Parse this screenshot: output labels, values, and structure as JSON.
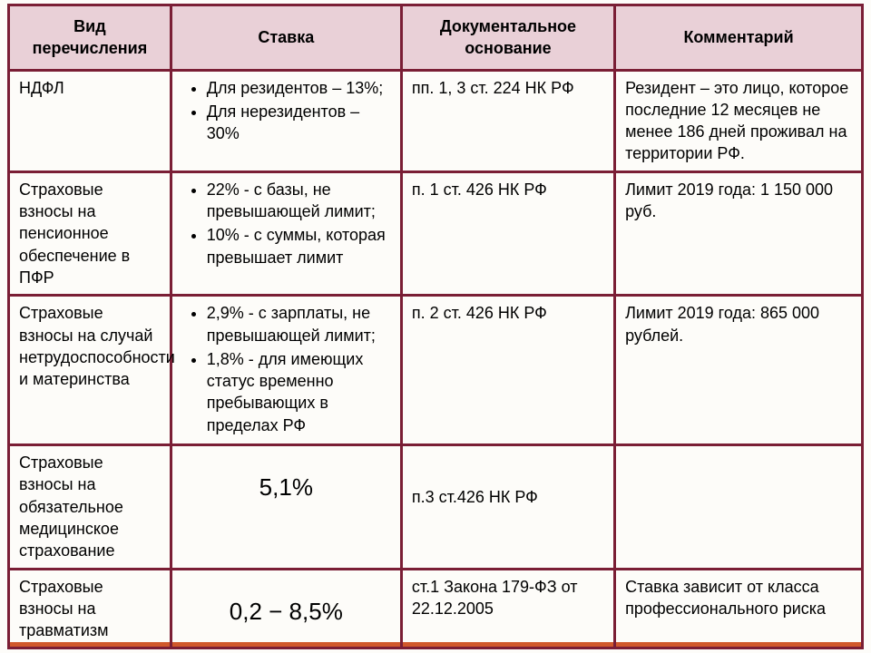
{
  "border_color": "#7a1e35",
  "header_bg": "#e9d0d7",
  "accent_bar": "#d0592b",
  "columns": [
    "Вид перечисления",
    "Ставка",
    "Документальное основание",
    "Комментарий"
  ],
  "rows": [
    {
      "type": "НДФЛ",
      "rate_items": [
        "Для резидентов – 13%;",
        "Для нерезидентов – 30%"
      ],
      "basis": "пп. 1, 3 ст. 224 НК РФ",
      "comment": "Резидент – это лицо, которое последние 12 месяцев не менее 186 дней проживал на территории РФ."
    },
    {
      "type": "Страховые взносы на пенсионное обеспечение в ПФР",
      "rate_items": [
        "22% - с базы, не превышающей лимит;",
        "10% -  с суммы, которая превышает лимит"
      ],
      "basis": "п. 1 ст. 426 НК РФ",
      "comment": "Лимит 2019 года: 1 150 000 руб."
    },
    {
      "type": "Страховые взносы на случай нетрудоспособности и материнства",
      "rate_items": [
        "2,9% - с зарплаты, не превышающей лимит;",
        "1,8% - для имеющих статус временно пребывающих в пределах РФ"
      ],
      "basis": "п. 2 ст. 426 НК РФ",
      "comment": "Лимит 2019 года: 865 000 рублей."
    },
    {
      "type": "Страховые взносы на обязательное медицинское страхование",
      "rate_text": "5,1%",
      "basis": "п.3 ст.426 НК РФ",
      "comment": ""
    },
    {
      "type": "Страховые взносы на травматизм",
      "rate_text": "0,2 − 8,5%",
      "basis": "ст.1 Закона 179-ФЗ от 22.12.2005",
      "comment": "Ставка зависит от класса профессионального риска"
    }
  ]
}
